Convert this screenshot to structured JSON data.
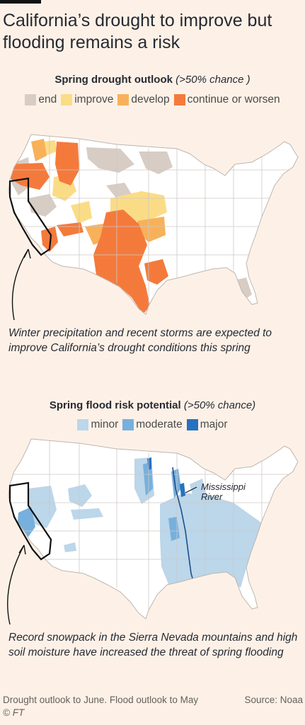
{
  "headline": "California’s drought to improve but flooding remains a risk",
  "drought": {
    "title": "Spring drought outlook",
    "note": "(>50% chance )",
    "legend": [
      {
        "label": "end",
        "color": "#d7cdc4"
      },
      {
        "label": "improve",
        "color": "#fbdc86"
      },
      {
        "label": "develop",
        "color": "#f8b15a"
      },
      {
        "label": "continue or worsen",
        "color": "#f47a3c"
      }
    ],
    "callout": "Winter precipitation and recent storms are expected to improve California’s drought conditions this spring"
  },
  "flood": {
    "title": "Spring flood risk potential",
    "note": "(>50% chance)",
    "legend": [
      {
        "label": "minor",
        "color": "#bcd6ea"
      },
      {
        "label": "moderate",
        "color": "#77b0dd"
      },
      {
        "label": "major",
        "color": "#2772bf"
      }
    ],
    "river_label": "Mississippi River",
    "callout": "Record snowpack in the Sierra Nevada mountains and high soil moisture have increased the threat of spring flooding"
  },
  "footer": {
    "notes": "Drought outlook to June. Flood outlook to May",
    "source": "Source: Noaa",
    "credit": "© FT"
  }
}
